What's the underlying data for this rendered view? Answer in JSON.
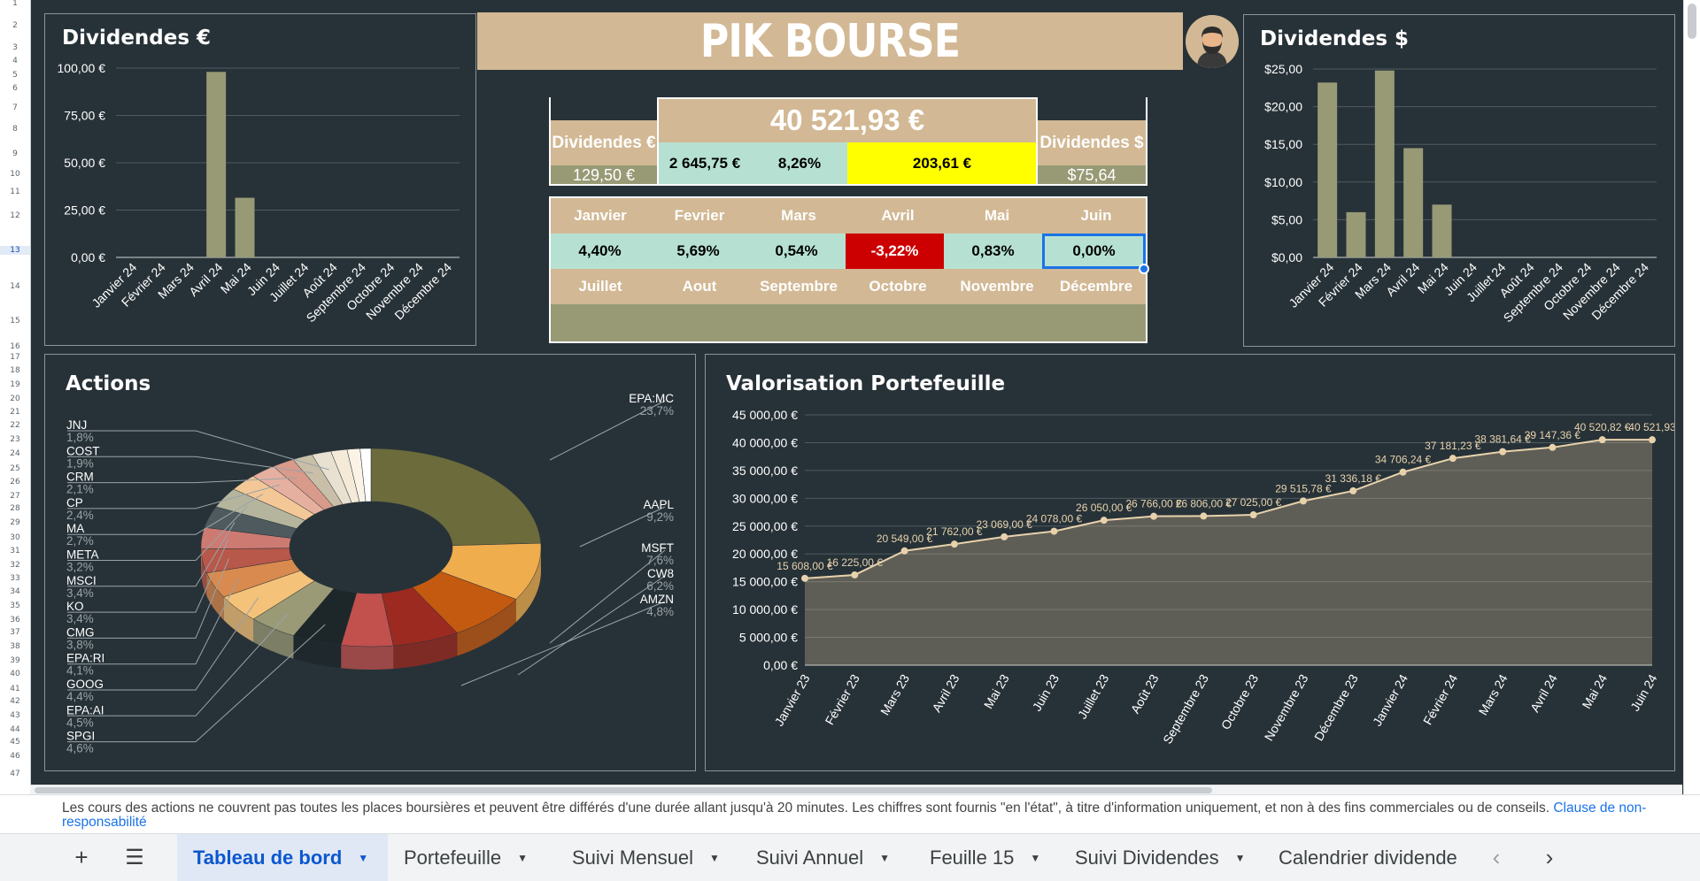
{
  "banner": {
    "title": "PIK BOURSE"
  },
  "colors": {
    "bar": "#989a76",
    "tan": "#d2b894",
    "mint": "#b6e1d2",
    "yellow": "#ffff00",
    "red": "#cc0000",
    "bg": "#273238"
  },
  "summary": {
    "total": "40 521,93 €",
    "div_eur_label": "Dividendes €",
    "div_eur_value": "129,50 €",
    "div_usd_label": "Dividendes $",
    "div_usd_value": "$75,64",
    "gain": "2 645,75 €",
    "gain_pct": "8,26%",
    "highlight": "203,61 €"
  },
  "months": {
    "row1": [
      "Janvier",
      "Fevrier",
      "Mars",
      "Avril",
      "Mai",
      "Juin"
    ],
    "values1": [
      "4,40%",
      "5,69%",
      "0,54%",
      "-3,22%",
      "0,83%",
      "0,00%"
    ],
    "row2": [
      "Juillet",
      "Aout",
      "Septembre",
      "Octobre",
      "Novembre",
      "Décembre"
    ]
  },
  "row_numbers": [
    "1",
    "2",
    "3",
    "4",
    "5",
    "6",
    "7",
    "8",
    "9",
    "10",
    "11",
    "12",
    "13",
    "14",
    "15",
    "16",
    "17",
    "18",
    "19",
    "20",
    "21",
    "22",
    "23",
    "24",
    "25",
    "26",
    "27",
    "28",
    "29",
    "30",
    "31",
    "32",
    "33",
    "34",
    "35",
    "36",
    "37",
    "38",
    "39",
    "40",
    "41",
    "42",
    "43",
    "44",
    "45",
    "46",
    "47"
  ],
  "chart_data": [
    {
      "type": "bar",
      "title": "Dividendes €",
      "categories": [
        "Janvier 24",
        "Février 24",
        "Mars 24",
        "Avril 24",
        "Mai 24",
        "Juin 24",
        "Juillet 24",
        "Août 24",
        "Septembre 24",
        "Octobre 24",
        "Novembre 24",
        "Décembre 24"
      ],
      "values": [
        0,
        0,
        0,
        98,
        31.5,
        0,
        0,
        0,
        0,
        0,
        0,
        0
      ],
      "ylim": [
        0,
        100
      ],
      "yticks": [
        "0,00 €",
        "25,00 €",
        "50,00 €",
        "75,00 €",
        "100,00 €"
      ],
      "grid": true
    },
    {
      "type": "bar",
      "title": "Dividendes $",
      "categories": [
        "Janvier 24",
        "Février 24",
        "Mars 24",
        "Avril 24",
        "Mai 24",
        "Juin 24",
        "Juillet 24",
        "Août 24",
        "Septembre 24",
        "Octobre 24",
        "Novembre 24",
        "Décembre 24"
      ],
      "values": [
        23.2,
        6,
        24.8,
        14.5,
        7,
        0,
        0,
        0,
        0,
        0,
        0,
        0
      ],
      "ylim": [
        0,
        25
      ],
      "yticks": [
        "$0,00",
        "$5,00",
        "$10,00",
        "$15,00",
        "$20,00",
        "$25,00"
      ],
      "grid": true
    },
    {
      "type": "pie",
      "title": "Actions",
      "slices": [
        {
          "label": "EPA:MC",
          "pct": "23,7%",
          "value": 23.7,
          "color": "#6b6b3c"
        },
        {
          "label": "AAPL",
          "pct": "9,2%",
          "value": 9.2,
          "color": "#f0ad4e"
        },
        {
          "label": "MSFT",
          "pct": "7,6%",
          "value": 7.6,
          "color": "#c45a10"
        },
        {
          "label": "CW8",
          "pct": "6,2%",
          "value": 6.2,
          "color": "#9c2a20"
        },
        {
          "label": "AMZN",
          "pct": "4,8%",
          "value": 4.8,
          "color": "#c2504d"
        },
        {
          "label": "SPGI",
          "pct": "4,6%",
          "value": 4.6,
          "color": "#1d2628"
        },
        {
          "label": "EPA:AI",
          "pct": "4,5%",
          "value": 4.5,
          "color": "#9a9a76"
        },
        {
          "label": "GOOG",
          "pct": "4,4%",
          "value": 4.4,
          "color": "#f5c27a"
        },
        {
          "label": "EPA:RI",
          "pct": "4,1%",
          "value": 4.1,
          "color": "#d98a4e"
        },
        {
          "label": "CMG",
          "pct": "3,8%",
          "value": 3.8,
          "color": "#b8584a"
        },
        {
          "label": "KO",
          "pct": "3,4%",
          "value": 3.4,
          "color": "#cc7a72"
        },
        {
          "label": "MSCI",
          "pct": "3,4%",
          "value": 3.4,
          "color": "#4e5a5d"
        },
        {
          "label": "META",
          "pct": "3,2%",
          "value": 3.2,
          "color": "#b5b59e"
        },
        {
          "label": "MA",
          "pct": "2,7%",
          "value": 2.7,
          "color": "#f3c796"
        },
        {
          "label": "CP",
          "pct": "2,4%",
          "value": 2.4,
          "color": "#e6b0a0"
        },
        {
          "label": "CRM",
          "pct": "2,1%",
          "value": 2.1,
          "color": "#d89a8a"
        },
        {
          "label": "COST",
          "pct": "1,9%",
          "value": 1.9,
          "color": "#c9bfa8"
        },
        {
          "label": "JNJ",
          "pct": "1,8%",
          "value": 1.8,
          "color": "#e8e0d0"
        },
        {
          "label": "",
          "pct": "",
          "value": 1.5,
          "color": "#f5ead8"
        },
        {
          "label": "",
          "pct": "",
          "value": 1.2,
          "color": "#faf3e6"
        },
        {
          "label": "",
          "pct": "",
          "value": 1.0,
          "color": "#ffffff"
        }
      ]
    },
    {
      "type": "area",
      "title": "Valorisation Portefeuille",
      "categories": [
        "Janvier 23",
        "Février 23",
        "Mars 23",
        "Avril 23",
        "Mai 23",
        "Juin 23",
        "Juillet 23",
        "Août 23",
        "Septembre 23",
        "Octobre 23",
        "Novembre 23",
        "Décembre 23",
        "Janvier 24",
        "Février 24",
        "Mars 24",
        "Avril 24",
        "Mai 24",
        "Juin 24"
      ],
      "values": [
        15608,
        16225,
        20549,
        21762,
        23069,
        24078,
        26050,
        26766,
        26806,
        27025,
        29515.78,
        31336.18,
        34706.24,
        37181.23,
        38381.64,
        39147.36,
        40520.82,
        40521.93
      ],
      "labels": [
        "15 608,00 €",
        "16 225,00 €",
        "20 549,00 €",
        "21 762,00 €",
        "23 069,00 €",
        "24 078,00 €",
        "26 050,00 €",
        "26 766,00 €",
        "26 806,00 €",
        "27 025,00 €",
        "29 515,78 €",
        "31 336,18 €",
        "34 706,24 €",
        "37 181,23 €",
        "38 381,64 €",
        "39 147,36 €",
        "40 520,82 €",
        "40 521,93"
      ],
      "ylim": [
        0,
        45000
      ],
      "yticks": [
        "0,00 €",
        "5 000,00 €",
        "10 000,00 €",
        "15 000,00 €",
        "20 000,00 €",
        "25 000,00 €",
        "30 000,00 €",
        "35 000,00 €",
        "40 000,00 €",
        "45 000,00 €"
      ],
      "grid": true
    }
  ],
  "disclaimer": {
    "text": "Les cours des actions ne couvrent pas toutes les places boursières et peuvent être différés d'une durée allant jusqu'à 20 minutes. Les chiffres sont fournis \"en l'état\", à titre d'information uniquement, et non à des fins commerciales ou de conseils.",
    "link": "Clause de non-responsabilité"
  },
  "tabs": [
    {
      "label": "Tableau de bord",
      "active": true
    },
    {
      "label": "Portefeuille"
    },
    {
      "label": "Suivi Mensuel"
    },
    {
      "label": "Suivi Annuel"
    },
    {
      "label": "Feuille 15"
    },
    {
      "label": "Suivi Dividendes"
    },
    {
      "label": "Calendrier dividende"
    }
  ],
  "icons": {
    "add": "plus-icon",
    "menu": "menu-icon",
    "prev": "chevron-left-icon",
    "next": "chevron-right-icon",
    "caret": "caret-down-icon"
  }
}
